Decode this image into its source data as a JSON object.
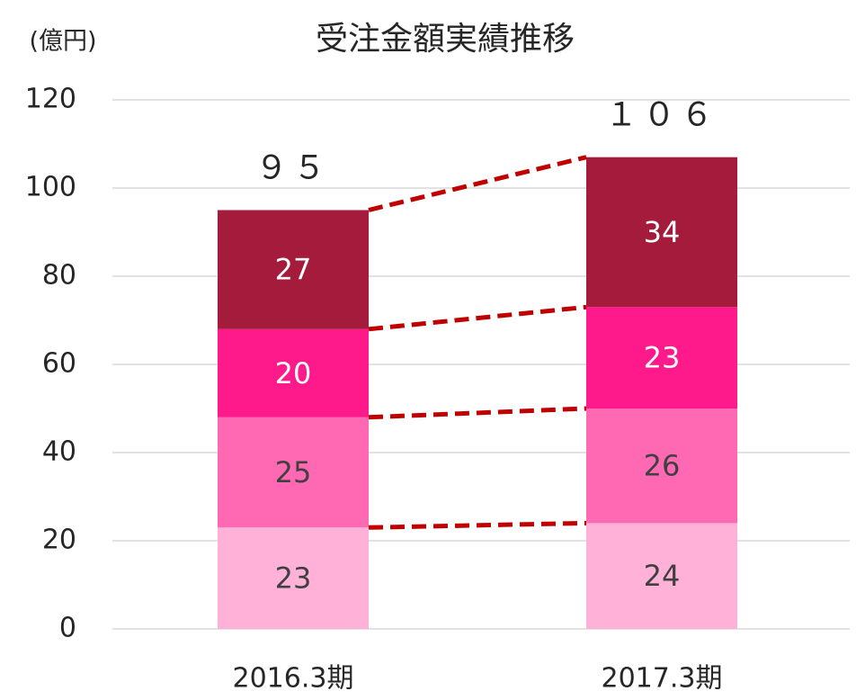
{
  "chart_data": {
    "type": "stacked_bar",
    "title": "受注金額実績推移",
    "y_label": "(億円)",
    "categories": [
      "2016.3期",
      "2017.3期"
    ],
    "series": [
      {
        "color": "#ffb1d8",
        "label_color": "#404040",
        "values": [
          23,
          24
        ]
      },
      {
        "color": "#ff69b4",
        "label_color": "#404040",
        "values": [
          25,
          26
        ]
      },
      {
        "color": "#ff1a8c",
        "label_color": "#ffffff",
        "values": [
          20,
          23
        ]
      },
      {
        "color": "#a51b3b",
        "label_color": "#ffffff",
        "values": [
          27,
          34
        ]
      }
    ],
    "totals": [
      95,
      106
    ],
    "total_labels": [
      "９５",
      "１０６"
    ],
    "connector_color": "#c00000",
    "ylim": [
      0,
      120
    ],
    "yticks": [
      0,
      20,
      40,
      60,
      80,
      100,
      120
    ],
    "grid": true
  }
}
